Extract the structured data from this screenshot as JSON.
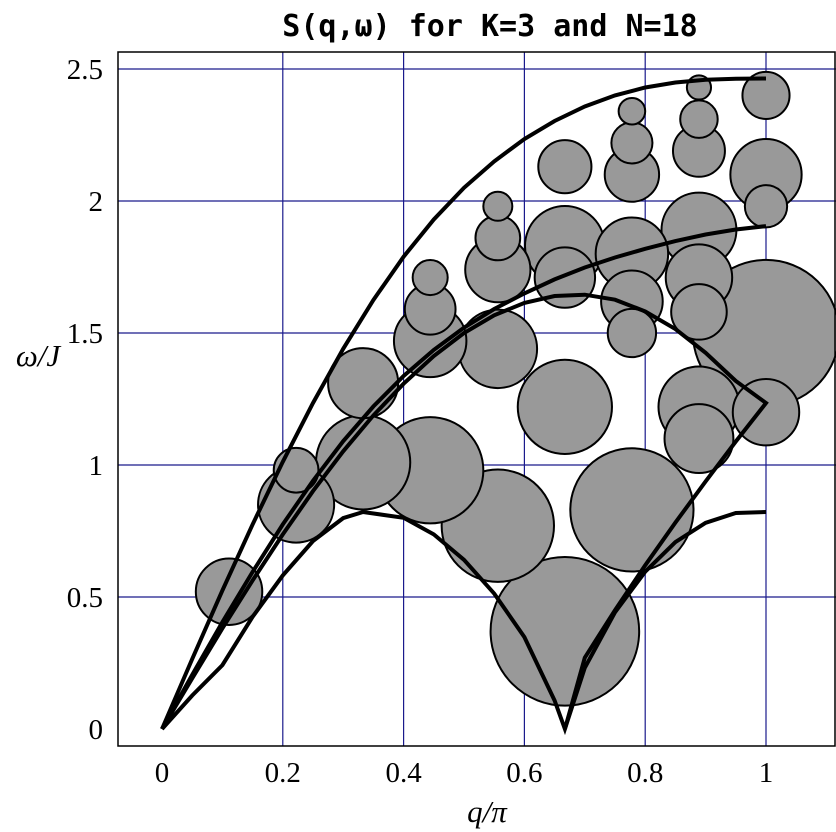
{
  "chart_data": {
    "type": "scatter",
    "title": "S(q,ω) for K=3 and N=18",
    "xlabel": "q/π",
    "ylabel": "ω/J",
    "xlim": [
      -0.05,
      1.13
    ],
    "ylim": [
      -0.05,
      2.6
    ],
    "xticks": [
      "0",
      "0.2",
      "0.4",
      "0.6",
      "0.8",
      "1"
    ],
    "xtick_values": [
      0,
      0.2,
      0.4,
      0.6,
      0.8,
      1.0
    ],
    "yticks": [
      "0",
      "0.5",
      "1",
      "1.5",
      "2",
      "2.5"
    ],
    "ytick_values": [
      0,
      0.5,
      1.0,
      1.5,
      2.0,
      2.5
    ],
    "grid": true,
    "bubbles": [
      {
        "q": 0.111,
        "omega": 0.52,
        "r": 0.055
      },
      {
        "q": 0.222,
        "omega": 0.85,
        "r": 0.063
      },
      {
        "q": 0.222,
        "omega": 0.98,
        "r": 0.037
      },
      {
        "q": 0.333,
        "omega": 1.31,
        "r": 0.058
      },
      {
        "q": 0.333,
        "omega": 1.01,
        "r": 0.078
      },
      {
        "q": 0.444,
        "omega": 1.71,
        "r": 0.029
      },
      {
        "q": 0.444,
        "omega": 1.59,
        "r": 0.042
      },
      {
        "q": 0.444,
        "omega": 1.47,
        "r": 0.06
      },
      {
        "q": 0.444,
        "omega": 0.98,
        "r": 0.088
      },
      {
        "q": 0.556,
        "omega": 1.98,
        "r": 0.024
      },
      {
        "q": 0.556,
        "omega": 1.86,
        "r": 0.037
      },
      {
        "q": 0.556,
        "omega": 1.74,
        "r": 0.054
      },
      {
        "q": 0.556,
        "omega": 1.44,
        "r": 0.065
      },
      {
        "q": 0.556,
        "omega": 0.77,
        "r": 0.093
      },
      {
        "q": 0.667,
        "omega": 2.13,
        "r": 0.044
      },
      {
        "q": 0.667,
        "omega": 1.71,
        "r": 0.05
      },
      {
        "q": 0.667,
        "omega": 1.83,
        "r": 0.066
      },
      {
        "q": 0.667,
        "omega": 1.22,
        "r": 0.078
      },
      {
        "q": 0.667,
        "omega": 0.37,
        "r": 0.123
      },
      {
        "q": 0.778,
        "omega": 2.34,
        "r": 0.022
      },
      {
        "q": 0.778,
        "omega": 2.22,
        "r": 0.034
      },
      {
        "q": 0.778,
        "omega": 2.1,
        "r": 0.045
      },
      {
        "q": 0.778,
        "omega": 1.5,
        "r": 0.04
      },
      {
        "q": 0.778,
        "omega": 1.62,
        "r": 0.051
      },
      {
        "q": 0.778,
        "omega": 1.8,
        "r": 0.06
      },
      {
        "q": 0.778,
        "omega": 0.83,
        "r": 0.102
      },
      {
        "q": 0.889,
        "omega": 2.43,
        "r": 0.02
      },
      {
        "q": 0.889,
        "omega": 2.31,
        "r": 0.031
      },
      {
        "q": 0.889,
        "omega": 2.19,
        "r": 0.043
      },
      {
        "q": 0.889,
        "omega": 1.58,
        "r": 0.046
      },
      {
        "q": 0.889,
        "omega": 1.71,
        "r": 0.055
      },
      {
        "q": 0.889,
        "omega": 1.89,
        "r": 0.062
      },
      {
        "q": 0.889,
        "omega": 1.1,
        "r": 0.057
      },
      {
        "q": 0.889,
        "omega": 1.22,
        "r": 0.067
      },
      {
        "q": 1.0,
        "omega": 1.98,
        "r": 0.035
      },
      {
        "q": 1.0,
        "omega": 2.4,
        "r": 0.039
      },
      {
        "q": 1.0,
        "omega": 2.1,
        "r": 0.059
      },
      {
        "q": 1.0,
        "omega": 1.2,
        "r": 0.055
      },
      {
        "q": 1.0,
        "omega": 1.5,
        "r": 0.121
      }
    ],
    "curves": [
      {
        "points": [
          [
            0,
            0
          ],
          [
            0.05,
            0.192
          ],
          [
            0.1,
            0.381
          ],
          [
            0.15,
            0.563
          ],
          [
            0.2,
            0.737
          ],
          [
            0.25,
            0.901
          ],
          [
            0.3,
            1.052
          ],
          [
            0.35,
            1.188
          ],
          [
            0.4,
            1.308
          ],
          [
            0.45,
            1.413
          ],
          [
            0.5,
            1.5
          ],
          [
            0.55,
            1.567
          ],
          [
            0.6,
            1.614
          ],
          [
            0.65,
            1.64
          ],
          [
            0.7,
            1.645
          ],
          [
            0.75,
            1.626
          ],
          [
            0.8,
            1.582
          ],
          [
            0.85,
            1.515
          ],
          [
            0.9,
            1.425
          ],
          [
            0.95,
            1.318
          ],
          [
            1.0,
            1.235
          ],
          [
            0.95,
            1.089
          ],
          [
            0.9,
            0.938
          ],
          [
            0.85,
            0.782
          ],
          [
            0.8,
            0.62
          ],
          [
            0.75,
            0.45
          ],
          [
            0.7,
            0.27
          ],
          [
            0.667,
            0.0
          ]
        ]
      },
      {
        "points": [
          [
            0,
            0
          ],
          [
            0.05,
            0.205
          ],
          [
            0.1,
            0.405
          ],
          [
            0.15,
            0.595
          ],
          [
            0.2,
            0.775
          ],
          [
            0.25,
            0.94
          ],
          [
            0.3,
            1.09
          ],
          [
            0.35,
            1.222
          ],
          [
            0.4,
            1.337
          ],
          [
            0.45,
            1.436
          ],
          [
            0.5,
            1.52
          ],
          [
            0.55,
            1.591
          ],
          [
            0.6,
            1.65
          ],
          [
            0.65,
            1.703
          ],
          [
            0.7,
            1.748
          ],
          [
            0.75,
            1.786
          ],
          [
            0.8,
            1.819
          ],
          [
            0.85,
            1.848
          ],
          [
            0.9,
            1.873
          ],
          [
            0.95,
            1.892
          ],
          [
            1.0,
            1.905
          ]
        ]
      },
      {
        "points": [
          [
            0,
            0
          ],
          [
            0.05,
            0.265
          ],
          [
            0.1,
            0.525
          ],
          [
            0.15,
            0.775
          ],
          [
            0.2,
            1.012
          ],
          [
            0.25,
            1.235
          ],
          [
            0.3,
            1.44
          ],
          [
            0.35,
            1.625
          ],
          [
            0.4,
            1.789
          ],
          [
            0.45,
            1.93
          ],
          [
            0.5,
            2.05
          ],
          [
            0.55,
            2.15
          ],
          [
            0.6,
            2.235
          ],
          [
            0.65,
            2.303
          ],
          [
            0.7,
            2.358
          ],
          [
            0.75,
            2.4
          ],
          [
            0.8,
            2.43
          ],
          [
            0.85,
            2.449
          ],
          [
            0.9,
            2.459
          ],
          [
            0.95,
            2.463
          ],
          [
            1.0,
            2.464
          ]
        ]
      },
      {
        "points": [
          [
            0,
            0
          ],
          [
            0.05,
            0.127
          ],
          [
            0.1,
            0.242
          ],
          [
            0.15,
            0.425
          ],
          [
            0.2,
            0.582
          ],
          [
            0.25,
            0.712
          ],
          [
            0.3,
            0.799
          ],
          [
            0.333,
            0.822
          ],
          [
            0.4,
            0.8
          ],
          [
            0.45,
            0.737
          ],
          [
            0.5,
            0.641
          ],
          [
            0.55,
            0.513
          ],
          [
            0.6,
            0.348
          ],
          [
            0.65,
            0.108
          ],
          [
            0.667,
            0.0
          ],
          [
            0.7,
            0.232
          ],
          [
            0.75,
            0.442
          ],
          [
            0.8,
            0.596
          ],
          [
            0.85,
            0.708
          ],
          [
            0.9,
            0.781
          ],
          [
            0.95,
            0.818
          ],
          [
            1.0,
            0.822
          ]
        ]
      }
    ]
  }
}
